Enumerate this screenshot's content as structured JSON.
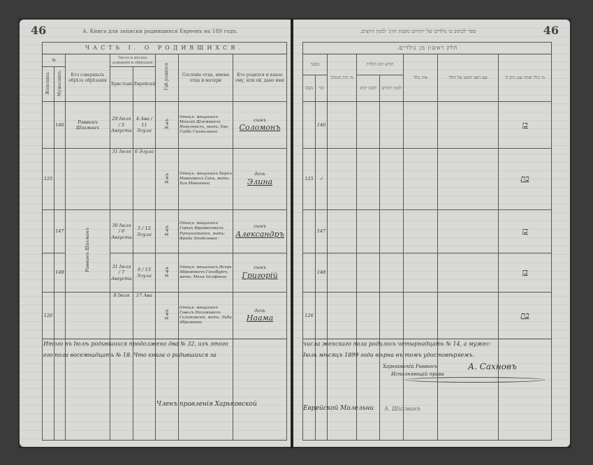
{
  "left_page": {
    "page_number": "46",
    "running_head": "А. Книга для записки родившихся Евреевъ на 189 годъ.",
    "section_title": "ЧАСТЬ I. О РОДИВШИХСЯ.",
    "headers": {
      "number": "№",
      "female": "Женскихъ",
      "male": "Мужескихъ",
      "performer": "Кто совершалъ обрѣзъ обрѣзанія",
      "date_group": "Число и мѣсяцъ рожденія и обрѣзанія",
      "christian": "Христіанскій",
      "jewish": "Еврейскій",
      "place": "Гдѣ родился",
      "estate": "Сословіе отца, имена отца и матери",
      "child": "Кто родился и какое ему, или ей, дано имя"
    },
    "rows": [
      {
        "female": "",
        "male": "146",
        "performer": "Раввинъ Шихманъ",
        "christian": "29 Іюля / 5 Августа",
        "jewish": "4 Ава / 11 Элула",
        "place": "Х-въ",
        "estate": "Отецъ: мещанинъ Моисей Шлемовичъ Янкелевичъ, мать: Ева-Гойба Гаимиловна",
        "child_sex": "сынъ",
        "child_name": "Соломонъ"
      },
      {
        "female": "125",
        "male": "",
        "performer": "",
        "christian": "31 Іюля",
        "jewish": "6 Элула",
        "place": "Х-въ",
        "estate": "Отецъ: мещанинъ Бернъ Мовшовичъ Сонь, мать: Хая Мовшовна",
        "child_sex": "дочь",
        "child_name": "Элина"
      },
      {
        "female": "",
        "male": "147",
        "performer": "Раввинъ Шихманъ",
        "christian": "30 Іюля / 6 Августа",
        "jewish": "5 / 12 Элула",
        "place": "Х-въ",
        "estate": "Отецъ: мещанинъ Гиршъ Фрайвесовичъ Рутинштейнъ, мать: Фрида Зенделевна",
        "child_sex": "сынъ",
        "child_name": "Александръ"
      },
      {
        "female": "",
        "male": "148",
        "performer": "",
        "christian": "31 Іюля / 7 Августа",
        "jewish": "6 / 13 Элула",
        "place": "Х-въ",
        "estate": "Отецъ: мещанинъ Исерь Абрамовичъ Гинзбургъ, мать: Маня Іосифовна",
        "child_sex": "сынъ",
        "child_name": "Григорій"
      },
      {
        "female": "126",
        "male": "",
        "performer": "",
        "christian": "8 Іюля",
        "jewish": "17 Ава",
        "place": "Х-въ",
        "estate": "Отецъ: мещанинъ Гавелъ Нахимовичъ Гальтовскій, мать: Либа Абрамовна",
        "child_sex": "дочь",
        "child_name": "Наама"
      }
    ],
    "footer_lines": [
      "Итого въ Іюлѣ родившихся продолжено два № 32, изъ этого",
      "его пола восемнадцать № 18. Что книга о родившихся за"
    ],
    "signature": "Членъ правленія Харьковской"
  },
  "right_page": {
    "page_number": "46",
    "running_head": "ספר לכתוב בו נולדים של יהודים משנת תרנ' למנין היוצים.",
    "section_title": "חלק ראשון מן נולדים.",
    "headers": {
      "child": "מי נולד ואיזה שם ניתן לו",
      "parents": "שם האב והאם של הולד",
      "place": "איה נולד",
      "date_group": "חודש ויום תולדת",
      "jewish": "למנין יהודים",
      "christian": "למנין יונים",
      "mohel": "מי היה המוהל",
      "number": "מספר",
      "male": "זכר",
      "female": "נקבה"
    },
    "rows": [
      {
        "number": "146",
        "child": "בן",
        "mark": ""
      },
      {
        "number": "125",
        "child": "בת",
        "mark": "✓"
      },
      {
        "number": "147",
        "child": "בן",
        "mark": ""
      },
      {
        "number": "148",
        "child": "בן",
        "mark": ""
      },
      {
        "number": "126",
        "child": "בת",
        "mark": ""
      }
    ],
    "footer_lines": [
      "числа женскаго пола родилось четырнадцать № 14, а мужес-",
      "Іюль мѣсяцъ 1899 года вѣрна въ томъ удостовѣряемъ."
    ],
    "stamp_text": "Харьковскій Раввинъ",
    "stamp_subtext": "Исполняющій права",
    "signature": "А. Сахновъ",
    "footer_bottom": "Еврейской Молельни",
    "footer_bottom_sig": "А. Шихманъ"
  }
}
